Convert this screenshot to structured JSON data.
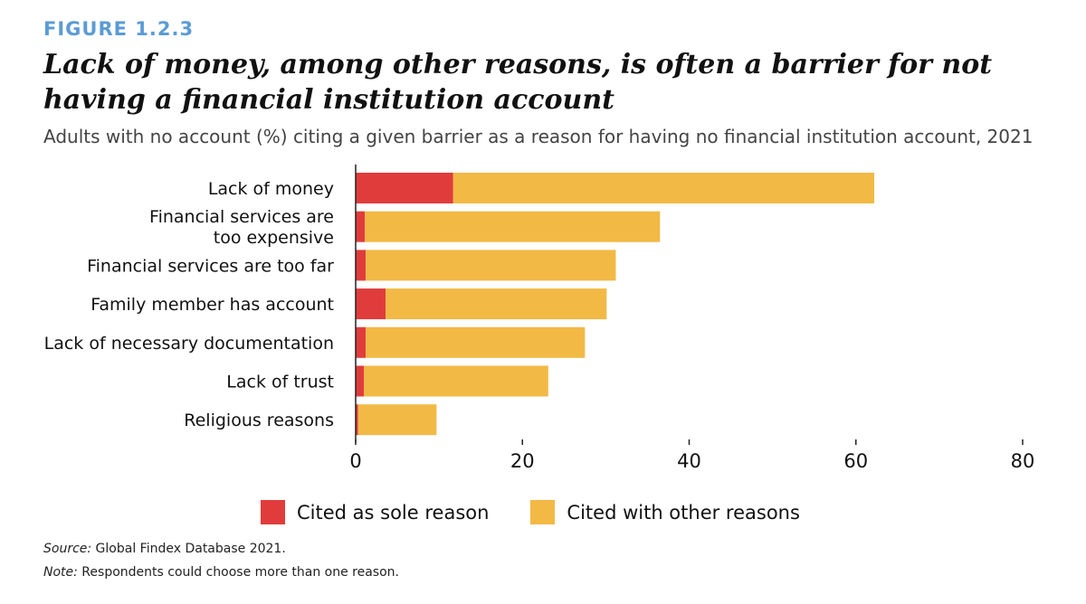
{
  "figure_label": "FIGURE 1.2.3",
  "title": "Lack of money, among other reasons, is often a barrier for not having a financial institution account",
  "subtitle": "Adults with no account (%) citing a given barrier as a reason for having no financial institution account, 2021",
  "source": {
    "label": "Source:",
    "text": " Global Findex Database 2021."
  },
  "note": {
    "label": "Note:",
    "text": " Respondents could choose more than one reason."
  },
  "colors": {
    "sole": "#e03c3c",
    "other": "#f2b944",
    "axis": "#222222"
  },
  "chart_data": {
    "type": "bar",
    "orientation": "horizontal",
    "stacked": true,
    "categories": [
      "Lack of money",
      "Financial services are too expensive",
      "Financial services are too far",
      "Family member has account",
      "Lack of necessary documentation",
      "Lack of trust",
      "Religious reasons"
    ],
    "category_lines": [
      [
        "Lack of money"
      ],
      [
        "Financial services are",
        "too expensive"
      ],
      [
        "Financial services are too far"
      ],
      [
        "Family member has account"
      ],
      [
        "Lack of necessary documentation"
      ],
      [
        "Lack of trust"
      ],
      [
        "Religious reasons"
      ]
    ],
    "series": [
      {
        "name": "Cited as sole reason",
        "values": [
          11.7,
          1.1,
          1.2,
          3.6,
          1.2,
          1.0,
          0.3
        ]
      },
      {
        "name": "Cited with other reasons",
        "values": [
          50.5,
          35.4,
          30.0,
          26.5,
          26.3,
          22.1,
          9.4
        ]
      }
    ],
    "xlim": [
      0,
      80
    ],
    "xticks": [
      0,
      20,
      40,
      60,
      80
    ],
    "legend_position": "bottom",
    "grid": false
  }
}
